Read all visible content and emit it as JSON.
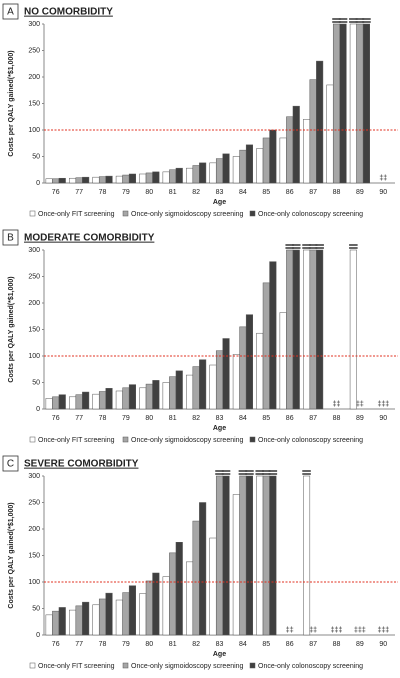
{
  "chart_data": [
    {
      "type": "bar",
      "panel": "A",
      "title": "NO COMORBIDITY",
      "x_label": "Age",
      "y_label": "Costs per QALY gained(*$1,000)",
      "categories": [
        "76",
        "77",
        "78",
        "79",
        "80",
        "81",
        "82",
        "83",
        "84",
        "85",
        "86",
        "87",
        "88",
        "89",
        "90"
      ],
      "series": [
        {
          "name": "Once-only FIT screening",
          "color": "#ffffff",
          "values": [
            8,
            9,
            11,
            13,
            17,
            21,
            28,
            38,
            50,
            65,
            85,
            120,
            185,
            300,
            null
          ]
        },
        {
          "name": "Once-only sigmoidoscopy screening",
          "color": "#a6a6a6",
          "values": [
            8,
            10,
            12,
            15,
            19,
            25,
            33,
            46,
            62,
            85,
            125,
            195,
            300,
            300,
            null
          ]
        },
        {
          "name": "Once-only colonoscopy screening",
          "color": "#404040",
          "values": [
            9,
            11,
            13,
            17,
            21,
            28,
            38,
            55,
            72,
            100,
            145,
            230,
            300,
            300,
            null
          ]
        }
      ],
      "notes": [
        {
          "category": "90",
          "text": "‡‡"
        }
      ],
      "reference_line": 100,
      "reference_color": "#e03020",
      "ylim": [
        0,
        300
      ],
      "yticks": [
        0,
        50,
        100,
        150,
        200,
        250,
        300
      ]
    },
    {
      "type": "bar",
      "panel": "B",
      "title": "MODERATE COMORBIDITY",
      "x_label": "Age",
      "y_label": "Costs per QALY gained(*$1,000)",
      "categories": [
        "76",
        "77",
        "78",
        "79",
        "80",
        "81",
        "82",
        "83",
        "84",
        "85",
        "86",
        "87",
        "88",
        "89",
        "90"
      ],
      "series": [
        {
          "name": "Once-only FIT screening",
          "color": "#ffffff",
          "values": [
            20,
            23,
            28,
            34,
            40,
            50,
            64,
            83,
            103,
            143,
            182,
            300,
            null,
            300,
            null
          ]
        },
        {
          "name": "Once-only sigmoidoscopy screening",
          "color": "#a6a6a6",
          "values": [
            23,
            27,
            33,
            40,
            47,
            61,
            80,
            110,
            155,
            238,
            300,
            300,
            null,
            null,
            null
          ]
        },
        {
          "name": "Once-only colonoscopy screening",
          "color": "#404040",
          "values": [
            27,
            32,
            39,
            46,
            54,
            72,
            93,
            133,
            178,
            278,
            300,
            300,
            null,
            null,
            null
          ]
        }
      ],
      "notes": [
        {
          "category": "88",
          "text": "‡‡"
        },
        {
          "category": "89",
          "text": "‡‡"
        },
        {
          "category": "90",
          "text": "‡‡‡"
        }
      ],
      "reference_line": 100,
      "reference_color": "#e03020",
      "ylim": [
        0,
        300
      ],
      "yticks": [
        0,
        50,
        100,
        150,
        200,
        250,
        300
      ]
    },
    {
      "type": "bar",
      "panel": "C",
      "title": "SEVERE COMORBIDITY",
      "x_label": "Age",
      "y_label": "Costs per QALY gained(*$1,000)",
      "categories": [
        "76",
        "77",
        "78",
        "79",
        "80",
        "81",
        "82",
        "83",
        "84",
        "85",
        "86",
        "87",
        "88",
        "89",
        "90"
      ],
      "series": [
        {
          "name": "Once-only FIT screening",
          "color": "#ffffff",
          "values": [
            38,
            47,
            57,
            66,
            78,
            110,
            138,
            183,
            265,
            300,
            null,
            300,
            null,
            null,
            null
          ]
        },
        {
          "name": "Once-only sigmoidoscopy screening",
          "color": "#a6a6a6",
          "values": [
            45,
            55,
            68,
            80,
            102,
            155,
            215,
            300,
            300,
            300,
            null,
            null,
            null,
            null,
            null
          ]
        },
        {
          "name": "Once-only colonoscopy screening",
          "color": "#404040",
          "values": [
            52,
            62,
            79,
            93,
            117,
            175,
            250,
            300,
            300,
            300,
            null,
            null,
            null,
            null,
            null
          ]
        }
      ],
      "notes": [
        {
          "category": "86",
          "text": "‡‡"
        },
        {
          "category": "87",
          "text": "‡‡"
        },
        {
          "category": "88",
          "text": "‡‡‡"
        },
        {
          "category": "89",
          "text": "‡‡‡"
        },
        {
          "category": "90",
          "text": "‡‡‡"
        }
      ],
      "reference_line": 100,
      "reference_color": "#e03020",
      "ylim": [
        0,
        300
      ],
      "yticks": [
        0,
        50,
        100,
        150,
        200,
        250,
        300
      ]
    }
  ]
}
